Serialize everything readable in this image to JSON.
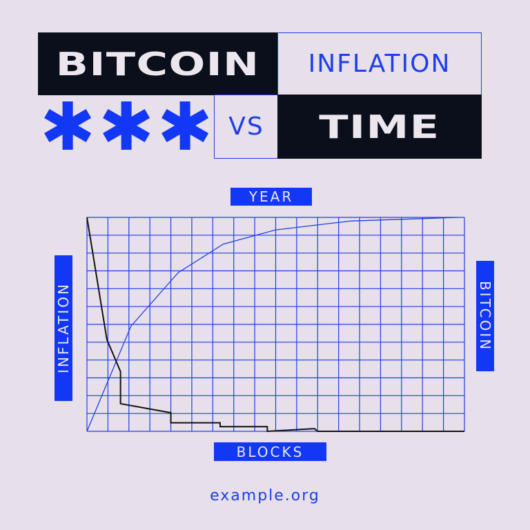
{
  "title": {
    "word1": "BITCOIN",
    "word2": "INFLATION",
    "word3": "VS",
    "word4": "TIME"
  },
  "decorations": {
    "asterisk_count": 3,
    "asterisk_icon": "asterisk-icon"
  },
  "colors": {
    "background": "#e7dfe9",
    "accent": "#1238f5",
    "dark": "#0b0f1c",
    "grid": "#1d3fe8",
    "black_series": "#111111"
  },
  "chart_data": {
    "type": "line",
    "title": "",
    "xlabel_top": "YEAR",
    "xlabel_bottom": "BLOCKS",
    "ylabel_left": "INFLATION",
    "ylabel_right": "BITCOIN",
    "xlim": [
      0,
      18
    ],
    "ylim": [
      0,
      12
    ],
    "grid": true,
    "grid_columns": 18,
    "grid_rows": 12,
    "tick_labels": false,
    "series": [
      {
        "color": "#1d3fe8",
        "x": [
          0,
          2.1,
          4.35,
          6.5,
          9,
          12.6,
          17.7
        ],
        "y": [
          0,
          5.9,
          8.9,
          10.5,
          11.3,
          11.8,
          12
        ]
      },
      {
        "color": "#111111",
        "x": [
          0,
          0.95,
          1.6,
          1.6,
          4,
          4,
          6.35,
          6.35,
          8.6,
          8.6,
          10.85,
          11,
          18
        ],
        "y": [
          12,
          5.15,
          3.35,
          1.55,
          1.04,
          0.48,
          0.48,
          0.26,
          0.26,
          0,
          0.15,
          0,
          0
        ]
      }
    ]
  },
  "footer": {
    "url": "example.org"
  }
}
